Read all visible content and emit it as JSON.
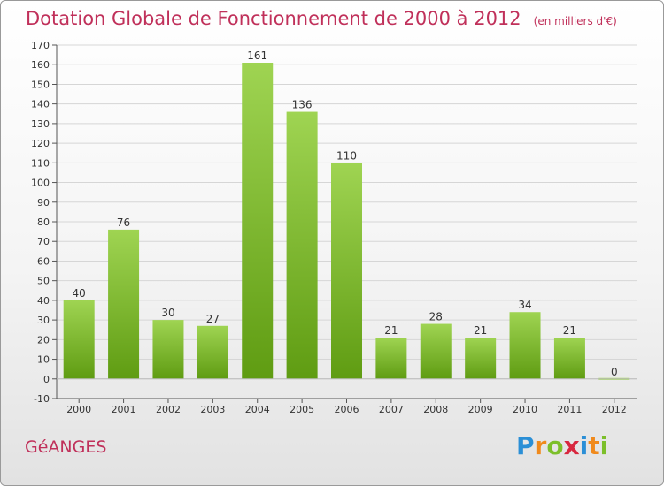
{
  "header": {
    "title": "Dotation Globale de Fonctionnement de 2000 à 2012",
    "subtitle": "(en milliers d'€)"
  },
  "commune": "GéANGES",
  "logo": {
    "text": "Proxiti",
    "letters": [
      {
        "ch": "P",
        "color": "#2b8fd6"
      },
      {
        "ch": "r",
        "color": "#f08a1c"
      },
      {
        "ch": "o",
        "color": "#7cbf2a"
      },
      {
        "ch": "x",
        "color": "#d8283f"
      },
      {
        "ch": "i",
        "color": "#2b8fd6"
      },
      {
        "ch": "t",
        "color": "#f08a1c"
      },
      {
        "ch": "i",
        "color": "#7cbf2a"
      }
    ]
  },
  "colors": {
    "bar_light": "#9fd452",
    "bar_dark": "#5f9c12",
    "grid": "#d6d6d6",
    "title": "#c0305a"
  },
  "chart_data": {
    "type": "bar",
    "categories": [
      "2000",
      "2001",
      "2002",
      "2003",
      "2004",
      "2005",
      "2006",
      "2007",
      "2008",
      "2009",
      "2010",
      "2011",
      "2012"
    ],
    "values": [
      40,
      76,
      30,
      27,
      161,
      136,
      110,
      21,
      28,
      21,
      34,
      21,
      0
    ],
    "ylim": [
      -10,
      170
    ],
    "yticks": [
      -10,
      0,
      10,
      20,
      30,
      40,
      50,
      60,
      70,
      80,
      90,
      100,
      110,
      120,
      130,
      140,
      150,
      160,
      170
    ],
    "grid": true,
    "data_labels": true
  }
}
